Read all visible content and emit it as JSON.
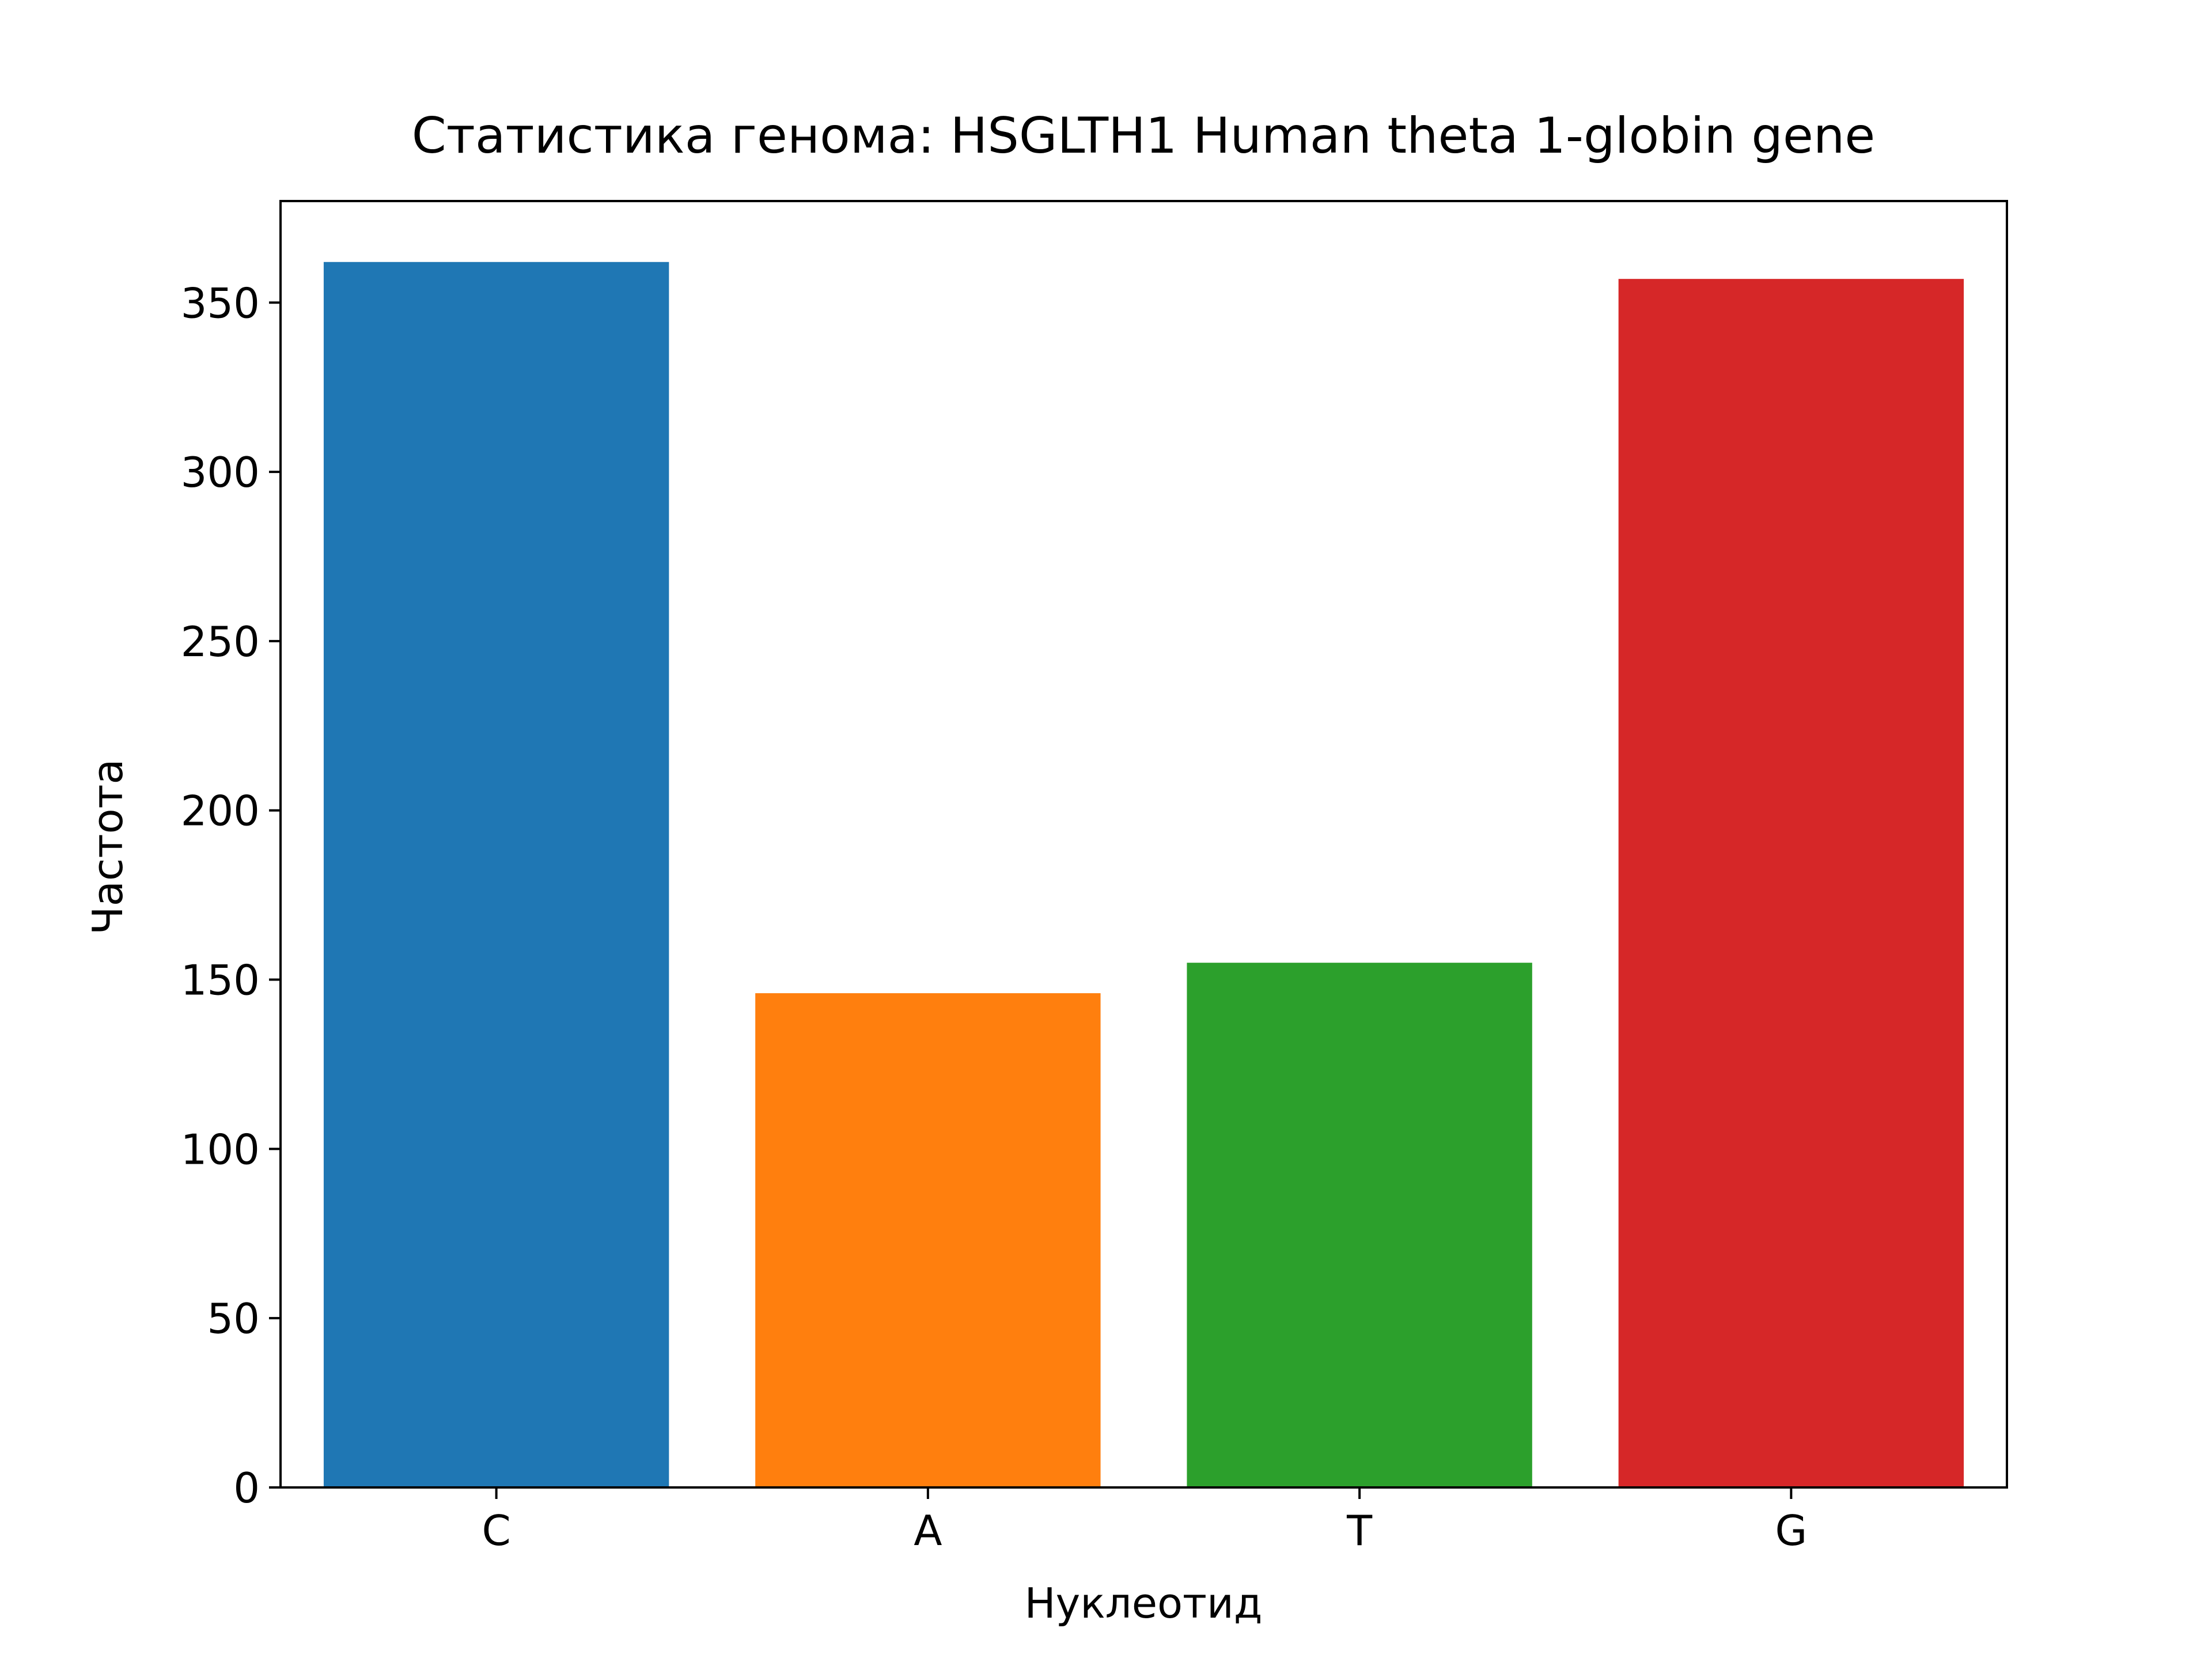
{
  "chart_data": {
    "type": "bar",
    "title": "Статистика генома: HSGLTH1 Human theta 1-globin gene",
    "xlabel": "Нуклеотид",
    "ylabel": "Частота",
    "categories": [
      "C",
      "A",
      "T",
      "G"
    ],
    "values": [
      362,
      146,
      155,
      357
    ],
    "colors": [
      "#1f77b4",
      "#ff7f0e",
      "#2ca02c",
      "#d62728"
    ],
    "ylim": [
      0,
      380
    ],
    "yticks": [
      0,
      50,
      100,
      150,
      200,
      250,
      300,
      350
    ],
    "grid": false,
    "legend": false
  }
}
